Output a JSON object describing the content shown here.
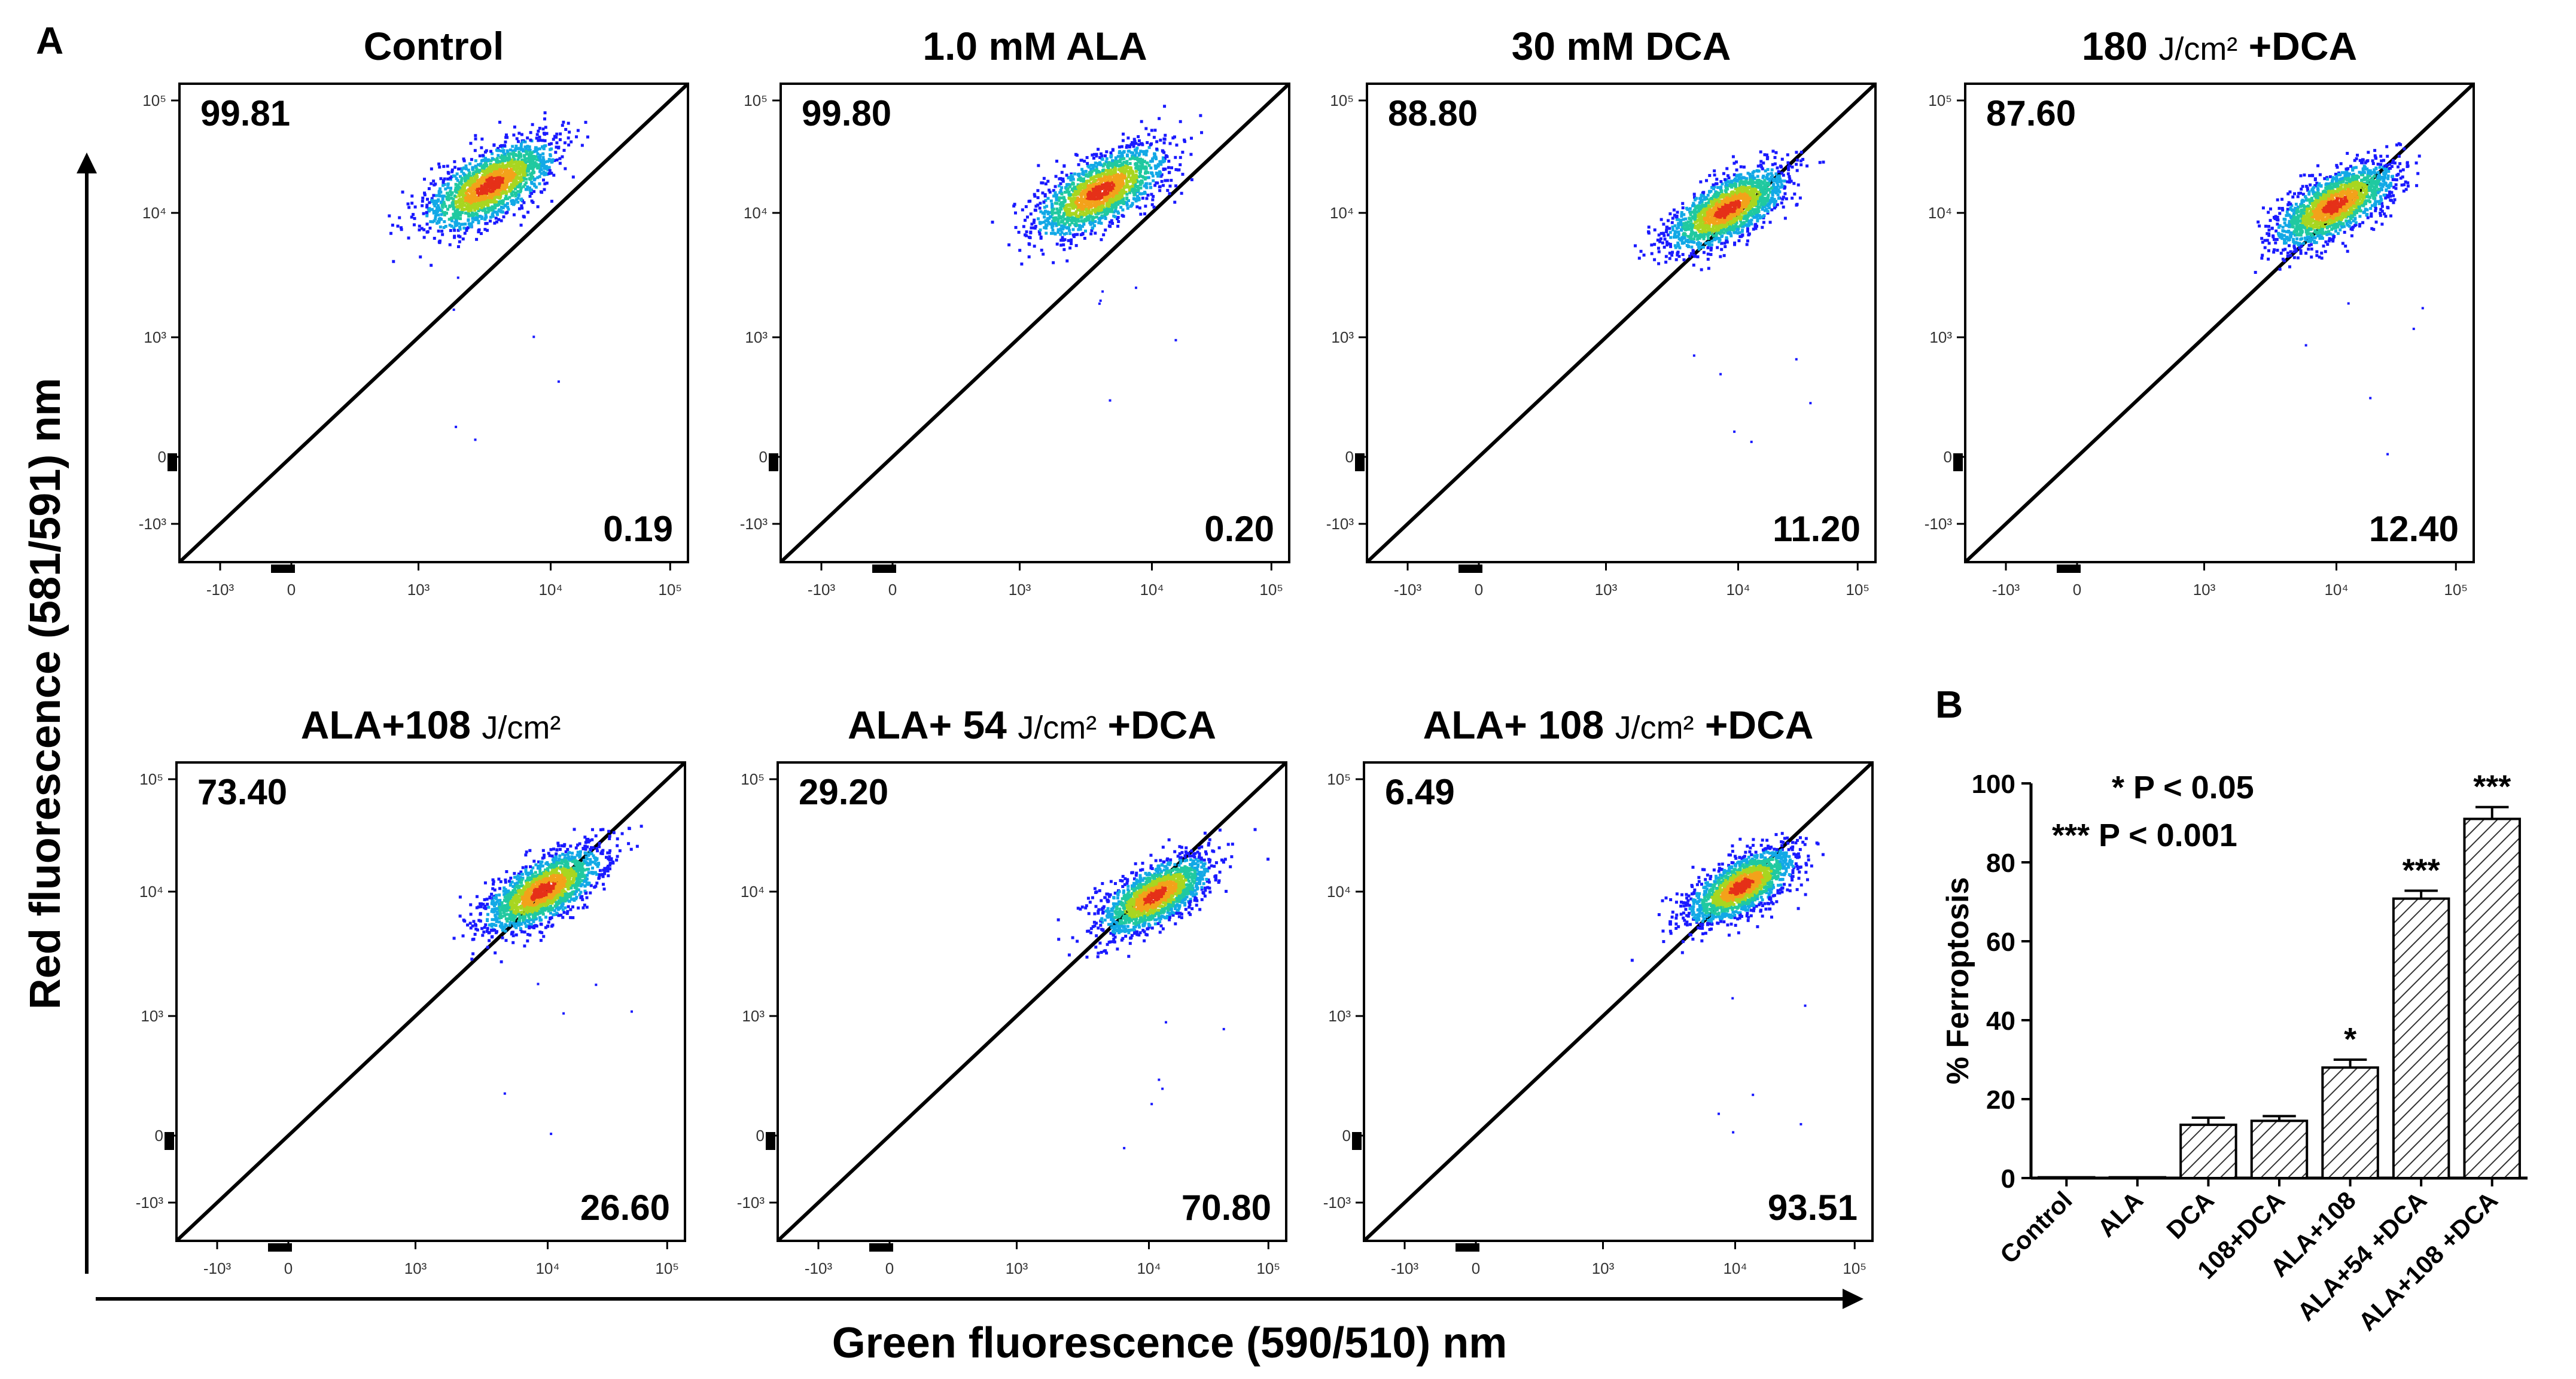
{
  "figure": {
    "panel_a_label": "A",
    "panel_b_label": "B",
    "y_axis_label": "Red fluorescence (581/591) nm",
    "x_axis_label": "Green fluorescence (590/510) nm"
  },
  "chart_data": [
    {
      "type": "scatter",
      "panel": "A",
      "description_units": "log fluorescence (biexponential axes)",
      "x_ticks": [
        "-10³",
        "0",
        "10³",
        "10⁴",
        "10⁵"
      ],
      "y_ticks": [
        "-10³",
        "0",
        "10³",
        "10⁴",
        "10⁵"
      ],
      "plots": [
        {
          "title_main": "Control",
          "title_unit": "",
          "title_suffix": "",
          "upper_left_pct": "99.81",
          "lower_right_pct": "0.19",
          "cloud_center": [
            3400,
            18000
          ],
          "cloud_spread": 0.33
        },
        {
          "title_main": "1.0 mM ALA",
          "title_unit": "",
          "title_suffix": "",
          "upper_left_pct": "99.80",
          "lower_right_pct": "0.20",
          "cloud_center": [
            4000,
            16000
          ],
          "cloud_spread": 0.33
        },
        {
          "title_main": "30 mM  DCA",
          "title_unit": "",
          "title_suffix": "",
          "upper_left_pct": "88.80",
          "lower_right_pct": "11.20",
          "cloud_center": [
            8000,
            11000
          ],
          "cloud_spread": 0.3
        },
        {
          "title_main": "180 ",
          "title_unit": "J/cm²",
          "title_suffix": " +DCA",
          "upper_left_pct": "87.60",
          "lower_right_pct": "12.40",
          "cloud_center": [
            9500,
            12000
          ],
          "cloud_spread": 0.3
        },
        {
          "title_main": "ALA+108 ",
          "title_unit": "J/cm²",
          "title_suffix": "",
          "upper_left_pct": "73.40",
          "lower_right_pct": "26.60",
          "cloud_center": [
            9000,
            10500
          ],
          "cloud_spread": 0.3
        },
        {
          "title_main": "ALA+ 54 ",
          "title_unit": "J/cm²",
          "title_suffix": "  +DCA",
          "upper_left_pct": "29.20",
          "lower_right_pct": "70.80",
          "cloud_center": [
            11000,
            9500
          ],
          "cloud_spread": 0.28
        },
        {
          "title_main": "ALA+ 108 ",
          "title_unit": "J/cm²",
          "title_suffix": " +DCA",
          "upper_left_pct": "6.49",
          "lower_right_pct": "93.51",
          "cloud_center": [
            11000,
            11500
          ],
          "cloud_spread": 0.27
        }
      ]
    },
    {
      "type": "bar",
      "panel": "B",
      "ylabel": "% Ferroptosis",
      "ylim": [
        0,
        100
      ],
      "yticks": [
        0,
        20,
        40,
        60,
        80,
        100
      ],
      "categories": [
        "Control",
        "ALA",
        "DCA",
        "108+DCA",
        "ALA+108",
        "ALA+54 +DCA",
        "ALA+108 +DCA"
      ],
      "values": [
        0.2,
        0.2,
        13.5,
        14.5,
        28,
        70.8,
        91
      ],
      "errors": [
        0.1,
        0.1,
        1.8,
        1.2,
        2,
        2,
        3
      ],
      "significance": [
        "",
        "",
        "",
        "",
        "*",
        "***",
        "***"
      ],
      "legend": [
        "* P < 0.05",
        "*** P < 0.001"
      ]
    }
  ]
}
